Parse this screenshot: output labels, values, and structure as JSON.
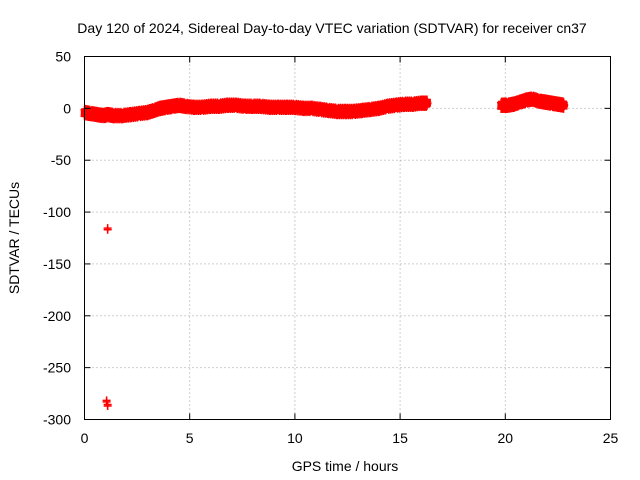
{
  "chart_data": {
    "type": "scatter",
    "title": "Day 120 of 2024, Sidereal Day-to-day VTEC variation (SDTVAR) for receiver cn37",
    "xlabel": "GPS time / hours",
    "ylabel": "SDTVAR / TECUs",
    "xlim": [
      0,
      25
    ],
    "ylim": [
      -300,
      50
    ],
    "xticks": [
      0,
      5,
      10,
      15,
      20,
      25
    ],
    "yticks": [
      50,
      0,
      -50,
      -100,
      -150,
      -200,
      -250,
      -300
    ],
    "grid": true,
    "marker": "+",
    "series_color": "#ff0000",
    "series": [
      {
        "name": "SDTVAR",
        "segments": [
          [
            [
              0.0,
              -4
            ],
            [
              0.3,
              -5
            ],
            [
              0.6,
              -6
            ],
            [
              0.9,
              -7
            ],
            [
              1.1,
              -6
            ],
            [
              1.4,
              -7
            ],
            [
              1.8,
              -7
            ],
            [
              2.2,
              -6
            ],
            [
              2.6,
              -5
            ],
            [
              3.0,
              -4
            ],
            [
              3.3,
              -2
            ],
            [
              3.6,
              0
            ],
            [
              3.9,
              1
            ],
            [
              4.2,
              2
            ],
            [
              4.5,
              3
            ],
            [
              4.8,
              2
            ],
            [
              5.2,
              1
            ],
            [
              5.6,
              1
            ],
            [
              6.0,
              2
            ],
            [
              6.4,
              2
            ],
            [
              6.8,
              3
            ],
            [
              7.2,
              3
            ],
            [
              7.6,
              2
            ],
            [
              8.0,
              2
            ],
            [
              8.4,
              2
            ],
            [
              8.8,
              1
            ],
            [
              9.2,
              1
            ],
            [
              9.6,
              1
            ],
            [
              10.0,
              1
            ],
            [
              10.4,
              0
            ],
            [
              10.8,
              0
            ],
            [
              11.2,
              -1
            ],
            [
              11.6,
              -2
            ],
            [
              12.0,
              -3
            ],
            [
              12.4,
              -3
            ],
            [
              12.8,
              -3
            ],
            [
              13.2,
              -2
            ],
            [
              13.6,
              -1
            ],
            [
              14.0,
              0
            ],
            [
              14.4,
              2
            ],
            [
              14.8,
              3
            ],
            [
              15.2,
              4
            ],
            [
              15.6,
              4
            ],
            [
              16.0,
              5
            ],
            [
              16.3,
              5
            ]
          ],
          [
            [
              19.8,
              3
            ],
            [
              20.1,
              3
            ],
            [
              20.4,
              4
            ],
            [
              20.7,
              6
            ],
            [
              21.0,
              8
            ],
            [
              21.3,
              9
            ],
            [
              21.6,
              7
            ],
            [
              21.9,
              6
            ],
            [
              22.2,
              5
            ],
            [
              22.5,
              4
            ],
            [
              22.8,
              3
            ]
          ]
        ],
        "outliers": [
          [
            1.1,
            -117
          ],
          [
            1.05,
            -283
          ],
          [
            1.1,
            -287
          ]
        ]
      }
    ]
  }
}
